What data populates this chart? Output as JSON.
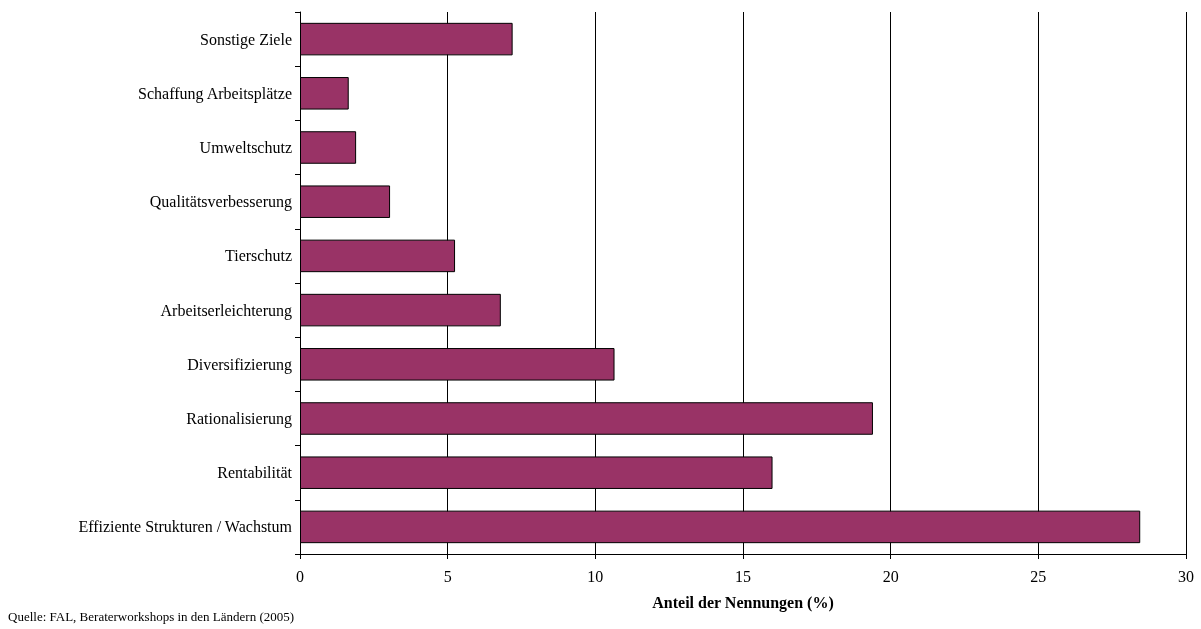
{
  "chart_data": {
    "type": "bar",
    "orientation": "horizontal",
    "xlabel": "Anteil der Nennungen (%)",
    "categories": [
      "Sonstige Ziele",
      "Schaffung Arbeitsplätze",
      "Umweltschutz",
      "Qualitätsverbesserung",
      "Tierschutz",
      "Arbeitserleichterung",
      "Diversifizierung",
      "Rationalisierung",
      "Rentabilität",
      "Effiziente Strukturen / Wachstum"
    ],
    "values": [
      7.2,
      1.65,
      1.9,
      3.05,
      5.25,
      6.8,
      10.65,
      19.4,
      16.0,
      28.45
    ],
    "color": "#993366",
    "xlim": [
      0,
      30
    ],
    "xticks": [
      0,
      5,
      10,
      15,
      20,
      25,
      30
    ],
    "grid": "x",
    "annotations": [
      "Quelle: FAL, Beraterworkshops in den Ländern (2005)"
    ]
  }
}
